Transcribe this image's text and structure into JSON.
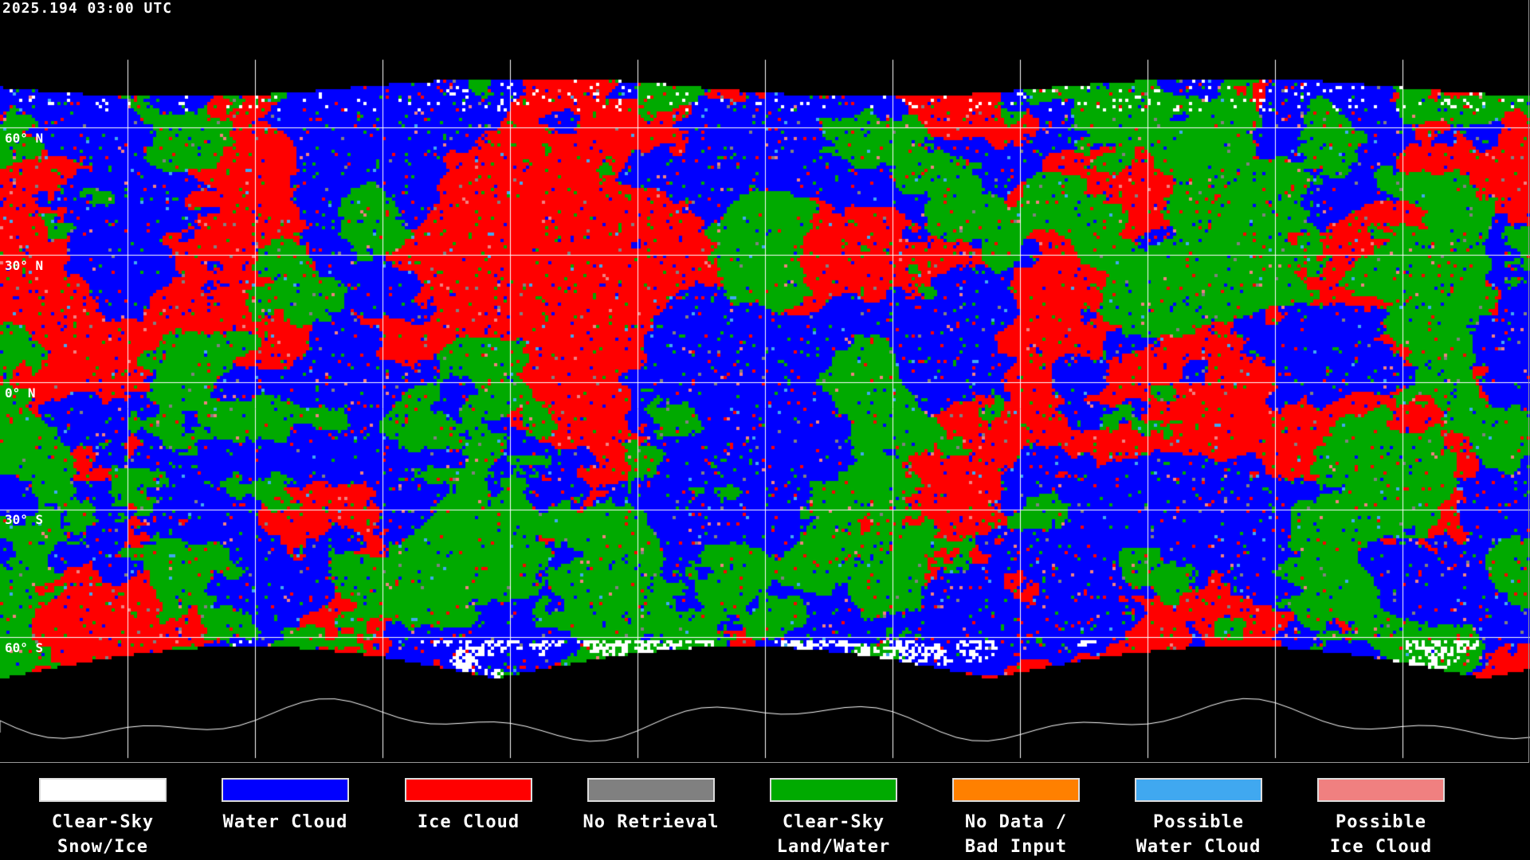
{
  "timestamp": "2025.194 03:00 UTC",
  "lat_labels": [
    "60° N",
    "30° N",
    "0° N",
    "30° S",
    "60° S"
  ],
  "grid": {
    "lon_step_deg": 30,
    "lat_step_deg": 30
  },
  "legend": [
    {
      "label": "Clear-Sky\nSnow/Ice",
      "color": "#ffffff"
    },
    {
      "label": "Water Cloud",
      "color": "#0000ff"
    },
    {
      "label": "Ice Cloud",
      "color": "#ff0000"
    },
    {
      "label": "No Retrieval",
      "color": "#808080"
    },
    {
      "label": "Clear-Sky\nLand/Water",
      "color": "#00aa00"
    },
    {
      "label": "No Data /\nBad Input",
      "color": "#ff8000"
    },
    {
      "label": "Possible\nWater Cloud",
      "color": "#40a8f0"
    },
    {
      "label": "Possible\nIce Cloud",
      "color": "#f08080"
    }
  ]
}
